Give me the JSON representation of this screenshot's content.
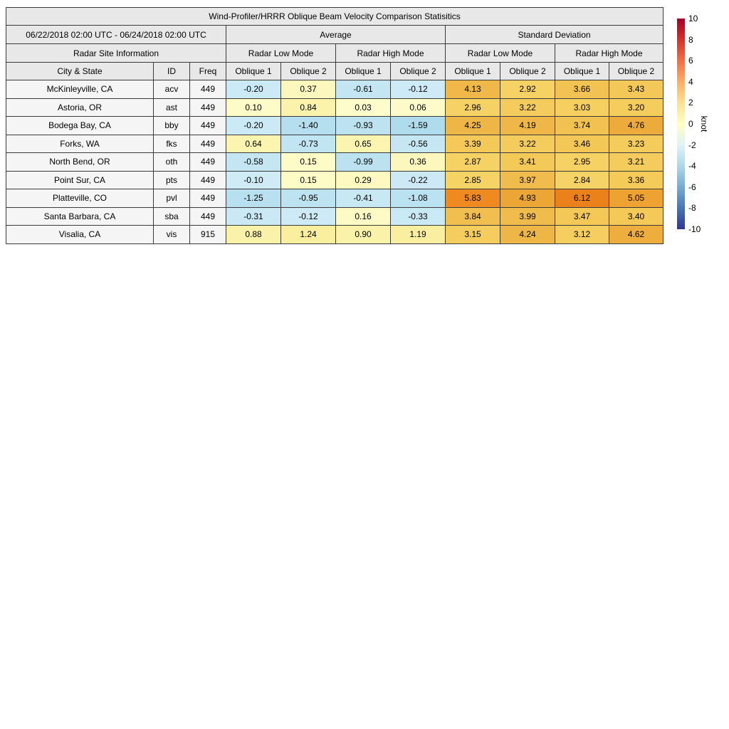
{
  "figure": {
    "title": "Wind-Profiler/HRRR Oblique Beam Velocity Comparison Statisitics",
    "date_range": "06/22/2018 02:00 UTC - 06/24/2018 02:00 UTC",
    "sections": {
      "average": "Average",
      "std": "Standard Deviation"
    },
    "site_info_header": "Radar Site Information",
    "mode_low": "Radar Low Mode",
    "mode_high": "Radar High Mode",
    "columns": {
      "city": "City & State",
      "id": "ID",
      "freq": "Freq",
      "oblique1": "Oblique 1",
      "oblique2": "Oblique 2"
    }
  },
  "colorbar": {
    "label": "knot",
    "min": -10,
    "max": 10,
    "ticks": [
      10,
      8,
      6,
      4,
      2,
      0,
      -2,
      -4,
      -6,
      -8,
      -10
    ],
    "gradient": [
      "#a50026",
      "#d73027",
      "#f46d43",
      "#fdae61",
      "#fee090",
      "#ffffbf",
      "#e0f3f8",
      "#abd9e9",
      "#74add1",
      "#4575b4",
      "#313695"
    ]
  },
  "chart_data": {
    "type": "heatmap",
    "title": "Wind-Profiler/HRRR Oblique Beam Velocity Comparison Statisitics",
    "unit": "knot",
    "value_range": [
      -10,
      10
    ],
    "row_header_columns": [
      "City & State",
      "ID",
      "Freq"
    ],
    "value_columns": [
      {
        "section": "Average",
        "mode": "Radar Low Mode",
        "beam": "Oblique 1"
      },
      {
        "section": "Average",
        "mode": "Radar Low Mode",
        "beam": "Oblique 2"
      },
      {
        "section": "Average",
        "mode": "Radar High Mode",
        "beam": "Oblique 1"
      },
      {
        "section": "Average",
        "mode": "Radar High Mode",
        "beam": "Oblique 2"
      },
      {
        "section": "Standard Deviation",
        "mode": "Radar Low Mode",
        "beam": "Oblique 1"
      },
      {
        "section": "Standard Deviation",
        "mode": "Radar Low Mode",
        "beam": "Oblique 2"
      },
      {
        "section": "Standard Deviation",
        "mode": "Radar High Mode",
        "beam": "Oblique 1"
      },
      {
        "section": "Standard Deviation",
        "mode": "Radar High Mode",
        "beam": "Oblique 2"
      }
    ],
    "rows": [
      {
        "city": "McKinleyville, CA",
        "id": "acv",
        "freq": "449",
        "values": [
          -0.2,
          0.37,
          -0.61,
          -0.12,
          4.13,
          2.92,
          3.66,
          3.43
        ]
      },
      {
        "city": "Astoria, OR",
        "id": "ast",
        "freq": "449",
        "values": [
          0.1,
          0.84,
          0.03,
          0.06,
          2.96,
          3.22,
          3.03,
          3.2
        ]
      },
      {
        "city": "Bodega Bay, CA",
        "id": "bby",
        "freq": "449",
        "values": [
          -0.2,
          -1.4,
          -0.93,
          -1.59,
          4.25,
          4.19,
          3.74,
          4.76
        ]
      },
      {
        "city": "Forks, WA",
        "id": "fks",
        "freq": "449",
        "values": [
          0.64,
          -0.73,
          0.65,
          -0.56,
          3.39,
          3.22,
          3.46,
          3.23
        ]
      },
      {
        "city": "North Bend, OR",
        "id": "oth",
        "freq": "449",
        "values": [
          -0.58,
          0.15,
          -0.99,
          0.36,
          2.87,
          3.41,
          2.95,
          3.21
        ]
      },
      {
        "city": "Point Sur, CA",
        "id": "pts",
        "freq": "449",
        "values": [
          -0.1,
          0.15,
          0.29,
          -0.22,
          2.85,
          3.97,
          2.84,
          3.36
        ]
      },
      {
        "city": "Platteville, CO",
        "id": "pvl",
        "freq": "449",
        "values": [
          -1.25,
          -0.95,
          -0.41,
          -1.08,
          5.83,
          4.93,
          6.12,
          5.05
        ]
      },
      {
        "city": "Santa Barbara, CA",
        "id": "sba",
        "freq": "449",
        "values": [
          -0.31,
          -0.12,
          0.16,
          -0.33,
          3.84,
          3.99,
          3.47,
          3.4
        ]
      },
      {
        "city": "Visalia, CA",
        "id": "vis",
        "freq": "915",
        "values": [
          0.88,
          1.24,
          0.9,
          1.19,
          3.15,
          4.24,
          3.12,
          4.62
        ]
      }
    ]
  }
}
